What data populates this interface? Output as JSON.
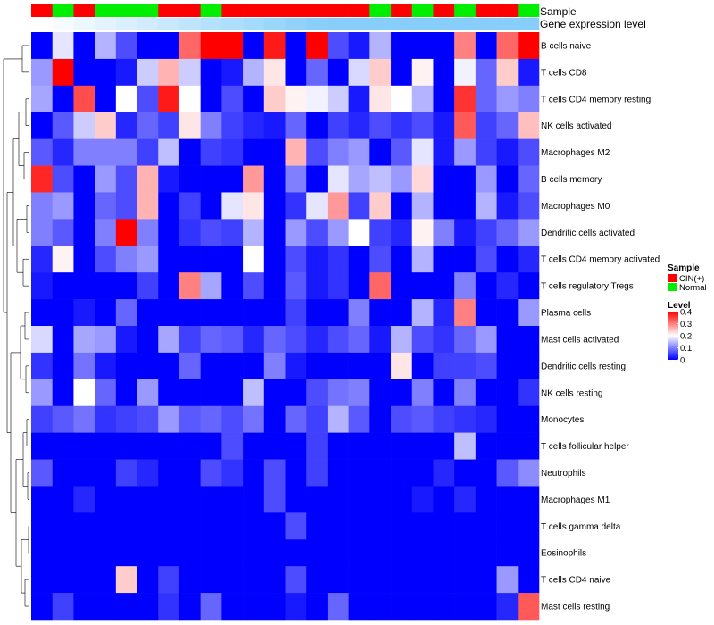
{
  "chart_data": {
    "type": "heatmap",
    "track_labels": {
      "sample": "Sample",
      "expression": "Gene expression level"
    },
    "sample_groups": [
      "CIN(+)",
      "Normal",
      "CIN(+)",
      "Normal",
      "Normal",
      "Normal",
      "CIN(+)",
      "CIN(+)",
      "Normal",
      "CIN(+)",
      "CIN(+)",
      "CIN(+)",
      "CIN(+)",
      "CIN(+)",
      "CIN(+)",
      "CIN(+)",
      "Normal",
      "CIN(+)",
      "Normal",
      "CIN(+)",
      "Normal",
      "CIN(+)",
      "CIN(+)",
      "Normal"
    ],
    "row_labels": [
      "B cells naive",
      "T cells CD8",
      "T cells CD4 memory resting",
      "NK cells activated",
      "Macrophages M2",
      "B cells memory",
      "Macrophages M0",
      "Dendritic cells activated",
      "T cells CD4 memory activated",
      "T cells regulatory  Tregs",
      "Plasma cells",
      "Mast cells activated",
      "Dendritic cells resting",
      "NK cells resting",
      "Monocytes",
      "T cells follicular helper",
      "Neutrophils",
      "Macrophages M1",
      "T cells gamma delta",
      "Eosinophils",
      "T cells CD4 naive",
      "Mast cells resting"
    ],
    "values": [
      [
        0.0,
        0.18,
        0.0,
        0.14,
        0.06,
        0.0,
        0.0,
        0.32,
        0.4,
        0.4,
        0.0,
        0.38,
        0.0,
        0.4,
        0.06,
        0.02,
        0.14,
        0.0,
        0.0,
        0.0,
        0.3,
        0.0,
        0.32,
        0.4
      ],
      [
        0.12,
        0.4,
        0.0,
        0.0,
        0.02,
        0.16,
        0.26,
        0.16,
        0.0,
        0.02,
        0.14,
        0.22,
        0.0,
        0.08,
        0.0,
        0.17,
        0.24,
        0.0,
        0.21,
        0.0,
        0.19,
        0.08,
        0.24,
        0.02
      ],
      [
        0.13,
        0.0,
        0.34,
        0.0,
        0.2,
        0.06,
        0.38,
        0.2,
        0.0,
        0.06,
        0.0,
        0.24,
        0.21,
        0.19,
        0.16,
        0.02,
        0.22,
        0.2,
        0.14,
        0.0,
        0.36,
        0.08,
        0.12,
        0.1
      ],
      [
        0.0,
        0.07,
        0.16,
        0.24,
        0.03,
        0.08,
        0.05,
        0.22,
        0.1,
        0.05,
        0.03,
        0.02,
        0.08,
        0.0,
        0.05,
        0.03,
        0.06,
        0.04,
        0.06,
        0.02,
        0.33,
        0.05,
        0.08,
        0.25
      ],
      [
        0.07,
        0.03,
        0.1,
        0.1,
        0.1,
        0.05,
        0.15,
        0.0,
        0.05,
        0.04,
        0.0,
        0.0,
        0.26,
        0.06,
        0.1,
        0.12,
        0.0,
        0.07,
        0.18,
        0.02,
        0.12,
        0.05,
        0.02,
        0.06
      ],
      [
        0.37,
        0.06,
        0.0,
        0.12,
        0.06,
        0.26,
        0.02,
        0.0,
        0.0,
        0.0,
        0.28,
        0.0,
        0.1,
        0.0,
        0.18,
        0.13,
        0.15,
        0.12,
        0.23,
        0.0,
        0.0,
        0.12,
        0.0,
        0.08
      ],
      [
        0.1,
        0.12,
        0.0,
        0.08,
        0.06,
        0.26,
        0.0,
        0.05,
        0.0,
        0.18,
        0.22,
        0.0,
        0.04,
        0.18,
        0.28,
        0.05,
        0.24,
        0.0,
        0.14,
        0.0,
        0.0,
        0.14,
        0.02,
        0.06
      ],
      [
        0.1,
        0.07,
        0.0,
        0.1,
        0.4,
        0.1,
        0.0,
        0.04,
        0.06,
        0.05,
        0.14,
        0.0,
        0.12,
        0.06,
        0.12,
        0.2,
        0.05,
        0.03,
        0.21,
        0.1,
        0.02,
        0.05,
        0.08,
        0.12
      ],
      [
        0.03,
        0.21,
        0.0,
        0.06,
        0.1,
        0.12,
        0.0,
        0.0,
        0.0,
        0.0,
        0.2,
        0.0,
        0.06,
        0.02,
        0.04,
        0.0,
        0.06,
        0.0,
        0.14,
        0.0,
        0.0,
        0.06,
        0.0,
        0.03
      ],
      [
        0.02,
        0.0,
        0.0,
        0.0,
        0.0,
        0.05,
        0.0,
        0.3,
        0.13,
        0.0,
        0.06,
        0.0,
        0.07,
        0.02,
        0.04,
        0.0,
        0.32,
        0.0,
        0.0,
        0.0,
        0.1,
        0.0,
        0.03,
        0.0
      ],
      [
        0.0,
        0.0,
        0.02,
        0.0,
        0.08,
        0.0,
        0.0,
        0.0,
        0.0,
        0.0,
        0.0,
        0.0,
        0.05,
        0.0,
        0.0,
        0.1,
        0.0,
        0.0,
        0.14,
        0.03,
        0.3,
        0.0,
        0.0,
        0.12
      ],
      [
        0.17,
        0.0,
        0.13,
        0.12,
        0.02,
        0.0,
        0.13,
        0.05,
        0.08,
        0.07,
        0.03,
        0.08,
        0.06,
        0.03,
        0.06,
        0.08,
        0.02,
        0.14,
        0.06,
        0.04,
        0.08,
        0.12,
        0.0,
        0.0
      ],
      [
        0.04,
        0.0,
        0.09,
        0.02,
        0.0,
        0.0,
        0.0,
        0.08,
        0.0,
        0.0,
        0.0,
        0.1,
        0.02,
        0.0,
        0.0,
        0.0,
        0.0,
        0.22,
        0.0,
        0.05,
        0.05,
        0.06,
        0.0,
        0.0
      ],
      [
        0.12,
        0.0,
        0.2,
        0.08,
        0.0,
        0.12,
        0.0,
        0.0,
        0.0,
        0.0,
        0.15,
        0.0,
        0.0,
        0.06,
        0.09,
        0.1,
        0.0,
        0.0,
        0.1,
        0.0,
        0.1,
        0.0,
        0.0,
        0.04
      ],
      [
        0.05,
        0.07,
        0.09,
        0.04,
        0.05,
        0.06,
        0.12,
        0.07,
        0.08,
        0.06,
        0.09,
        0.0,
        0.08,
        0.05,
        0.14,
        0.07,
        0.0,
        0.06,
        0.07,
        0.05,
        0.04,
        0.03,
        0.0,
        0.0
      ],
      [
        0.0,
        0.0,
        0.0,
        0.0,
        0.0,
        0.0,
        0.0,
        0.0,
        0.0,
        0.06,
        0.0,
        0.0,
        0.0,
        0.05,
        0.0,
        0.0,
        0.0,
        0.0,
        0.0,
        0.0,
        0.15,
        0.0,
        0.0,
        0.0
      ],
      [
        0.07,
        0.0,
        0.0,
        0.0,
        0.05,
        0.03,
        0.0,
        0.0,
        0.06,
        0.04,
        0.0,
        0.06,
        0.0,
        0.05,
        0.0,
        0.0,
        0.0,
        0.0,
        0.0,
        0.03,
        0.0,
        0.0,
        0.07,
        0.11
      ],
      [
        0.0,
        0.0,
        0.03,
        0.0,
        0.0,
        0.0,
        0.0,
        0.0,
        0.0,
        0.0,
        0.0,
        0.06,
        0.0,
        0.0,
        0.0,
        0.0,
        0.0,
        0.0,
        0.02,
        0.0,
        0.03,
        0.0,
        0.0,
        0.0
      ],
      [
        0.0,
        0.0,
        0.0,
        0.0,
        0.0,
        0.0,
        0.0,
        0.0,
        0.0,
        0.0,
        0.0,
        0.0,
        0.06,
        0.0,
        0.0,
        0.0,
        0.0,
        0.0,
        0.0,
        0.0,
        0.0,
        0.0,
        0.0,
        0.0
      ],
      [
        0.0,
        0.0,
        0.0,
        0.0,
        0.0,
        0.0,
        0.0,
        0.0,
        0.0,
        0.0,
        0.0,
        0.0,
        0.0,
        0.0,
        0.0,
        0.0,
        0.0,
        0.0,
        0.0,
        0.0,
        0.0,
        0.0,
        0.0,
        0.0
      ],
      [
        0.0,
        0.0,
        0.0,
        0.0,
        0.24,
        0.0,
        0.05,
        0.0,
        0.0,
        0.0,
        0.0,
        0.0,
        0.06,
        0.0,
        0.0,
        0.0,
        0.0,
        0.0,
        0.0,
        0.0,
        0.0,
        0.0,
        0.12,
        0.0
      ],
      [
        0.0,
        0.05,
        0.0,
        0.0,
        0.0,
        0.0,
        0.04,
        0.0,
        0.08,
        0.0,
        0.0,
        0.0,
        0.02,
        0.0,
        0.08,
        0.0,
        0.0,
        0.0,
        0.0,
        0.0,
        0.0,
        0.0,
        0.03,
        0.33
      ]
    ],
    "legend": {
      "sample_title": "Sample",
      "sample_entries": [
        {
          "label": "CIN(+)",
          "color": "#ff0000"
        },
        {
          "label": "Normal",
          "color": "#00ee00"
        }
      ],
      "level_title": "Level",
      "level_ticks": [
        {
          "value": 0.4,
          "label": "0.4"
        },
        {
          "value": 0.3,
          "label": "0.3"
        },
        {
          "value": 0.2,
          "label": "0.2"
        },
        {
          "value": 0.1,
          "label": "0.1"
        },
        {
          "value": 0.0,
          "label": "0"
        }
      ],
      "position": "right"
    },
    "color_scale": {
      "low": "#0000ff",
      "mid": "#ffffff",
      "high": "#ff0000",
      "domain": [
        0,
        0.2,
        0.4
      ]
    },
    "expression_track_color": "#87cefa",
    "expression_track_start_color": "#ffffff",
    "group_colors": {
      "CIN(+)": "#ff0000",
      "Normal": "#00ee00"
    }
  }
}
